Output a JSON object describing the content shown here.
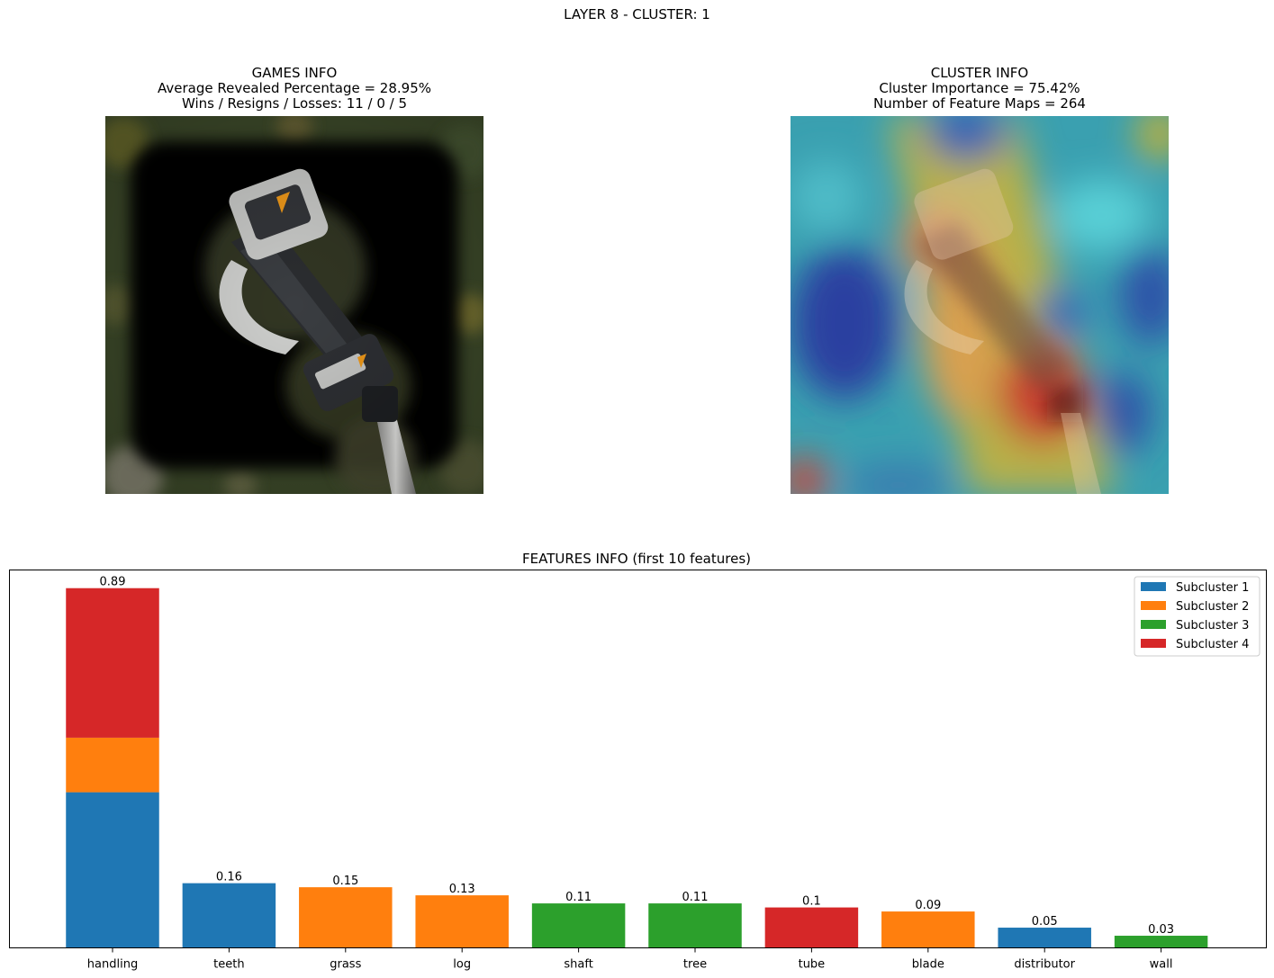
{
  "suptitle": "LAYER 8 - CLUSTER: 1",
  "games_info": {
    "title": "GAMES INFO",
    "line1": "Average Revealed Percentage = 28.95%",
    "line2": "Wins / Resigns / Losses: 11 / 0 / 5"
  },
  "cluster_info": {
    "title": "CLUSTER INFO",
    "line1": "Cluster Importance = 75.42%",
    "line2": "Number of Feature Maps = 264"
  },
  "chart_data": {
    "type": "bar",
    "stacked": true,
    "title": "FEATURES INFO (first 10 features)",
    "xlabel": "",
    "ylabel": "",
    "ylim": [
      0,
      0.935
    ],
    "categories": [
      "handling",
      "teeth",
      "grass",
      "log",
      "shaft",
      "tree",
      "tube",
      "blade",
      "distributor",
      "wall"
    ],
    "totals_labels": [
      "0.89",
      "0.16",
      "0.15",
      "0.13",
      "0.11",
      "0.11",
      "0.1",
      "0.09",
      "0.05",
      "0.03"
    ],
    "series": [
      {
        "name": "Subcluster 1",
        "color": "#1f77b4",
        "values": [
          0.385,
          0.16,
          0,
          0,
          0,
          0,
          0,
          0,
          0.05,
          0
        ]
      },
      {
        "name": "Subcluster 2",
        "color": "#ff7f0e",
        "values": [
          0.135,
          0,
          0.15,
          0.13,
          0,
          0,
          0,
          0.09,
          0,
          0
        ]
      },
      {
        "name": "Subcluster 3",
        "color": "#2ca02c",
        "values": [
          0,
          0,
          0,
          0,
          0.11,
          0.11,
          0,
          0,
          0,
          0.03
        ]
      },
      {
        "name": "Subcluster 4",
        "color": "#d62728",
        "values": [
          0.37,
          0,
          0,
          0,
          0,
          0,
          0.1,
          0,
          0,
          0
        ]
      }
    ],
    "legend_position": "upper right",
    "grid": false,
    "yticks_visible": false
  }
}
